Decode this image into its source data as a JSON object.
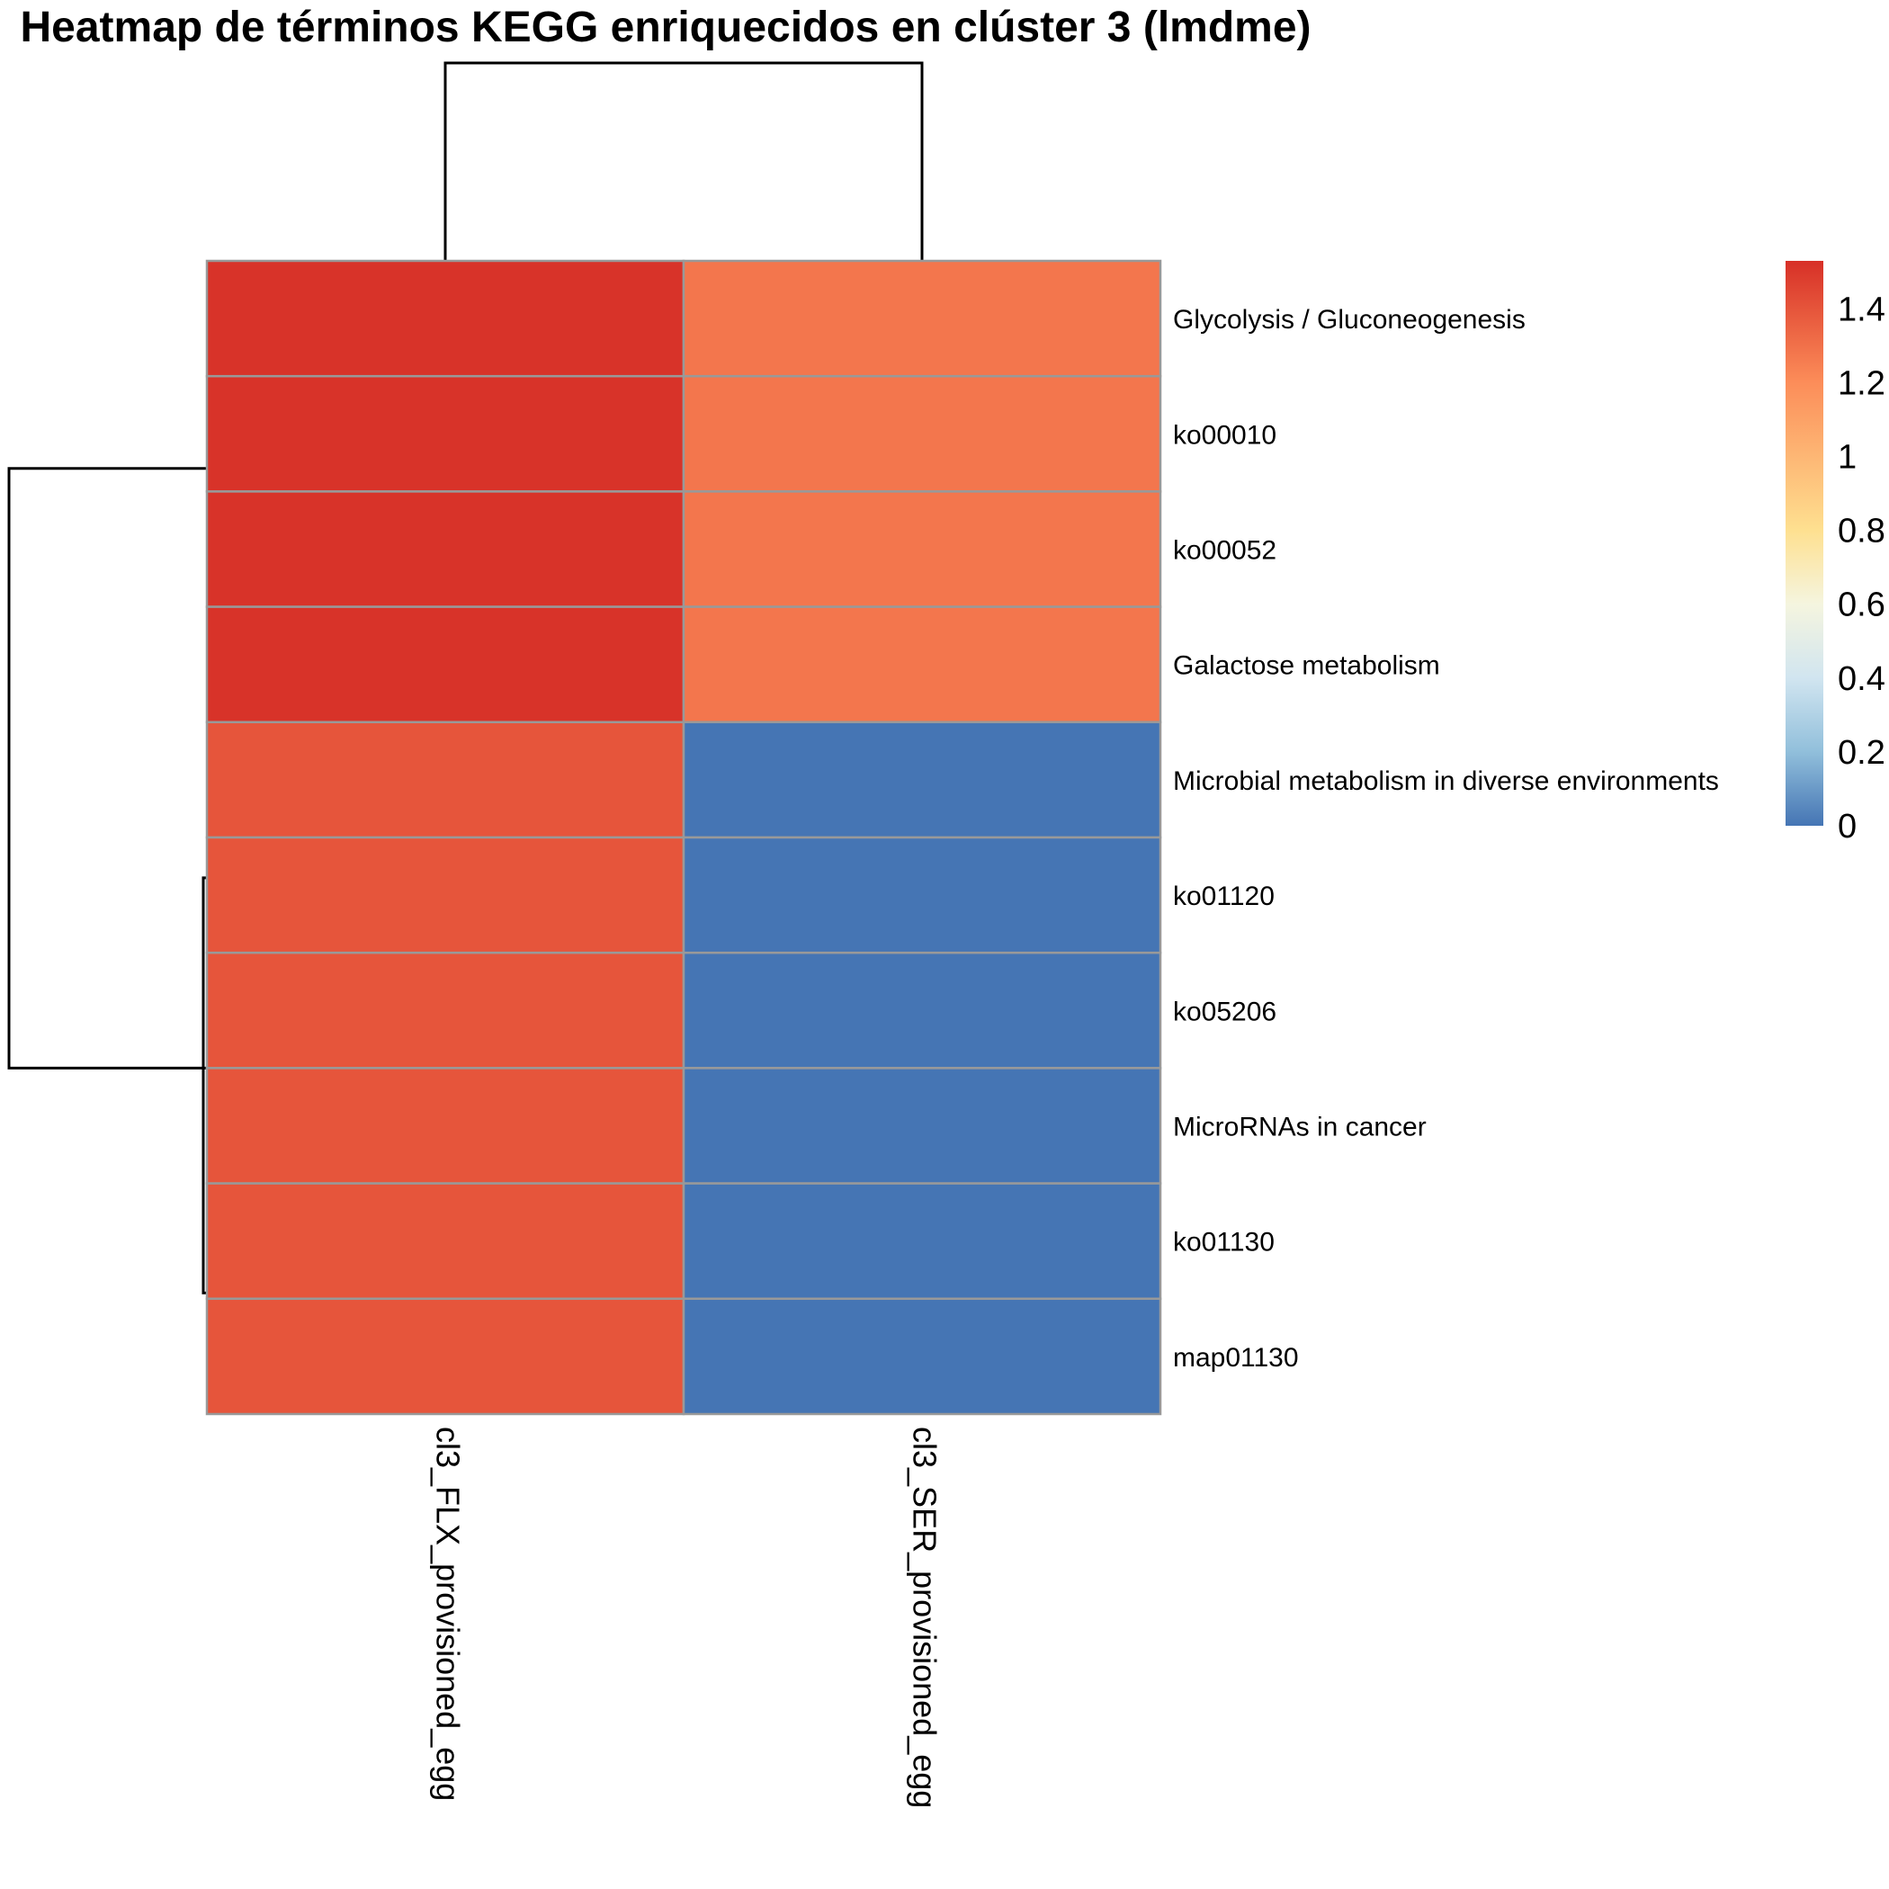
{
  "chart_data": {
    "type": "heatmap",
    "title": "Heatmap de términos KEGG enriquecidos en clúster 3 (lmdme)",
    "columns": [
      "cl3_FLX_provisioned_egg",
      "cl3_SER_provisioned_egg"
    ],
    "rows": [
      "Glycolysis / Gluconeogenesis",
      "ko00010",
      "ko00052",
      "Galactose metabolism",
      "Microbial metabolism in diverse environments",
      "ko01120",
      "ko05206",
      "MicroRNAs in cancer",
      "ko01130",
      "map01130"
    ],
    "values": [
      [
        1.52,
        1.28
      ],
      [
        1.52,
        1.28
      ],
      [
        1.52,
        1.28
      ],
      [
        1.52,
        1.28
      ],
      [
        1.4,
        0.0
      ],
      [
        1.4,
        0.0
      ],
      [
        1.4,
        0.0
      ],
      [
        1.4,
        0.0
      ],
      [
        1.4,
        0.0
      ],
      [
        1.4,
        0.0
      ]
    ],
    "color_scale": {
      "stops": [
        {
          "value": 0.0,
          "color": "#4575b4"
        },
        {
          "value": 0.2,
          "color": "#91bfdb"
        },
        {
          "value": 0.4,
          "color": "#d1e5f0"
        },
        {
          "value": 0.6,
          "color": "#f5f5df"
        },
        {
          "value": 0.8,
          "color": "#fee090"
        },
        {
          "value": 1.2,
          "color": "#fc8d59"
        },
        {
          "value": 1.53,
          "color": "#d73027"
        }
      ],
      "ticks": [
        0,
        0.2,
        0.4,
        0.6,
        0.8,
        1,
        1.2,
        1.4
      ],
      "tick_labels": [
        "0",
        "0.2",
        "0.4",
        "0.6",
        "0.8",
        "1",
        "1.2",
        "1.4"
      ],
      "range": [
        0,
        1.53
      ]
    },
    "grid_color": "#999999",
    "legend_placement": "right",
    "column_dendrogram": "top",
    "row_dendrogram": "left"
  }
}
